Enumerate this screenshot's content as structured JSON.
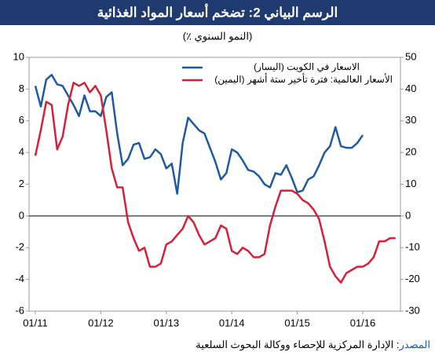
{
  "chart_data": {
    "type": "line",
    "title": "الرسم البياني 2: تضخم أسعار المواد الغذائية",
    "subtitle": "(٪ النمو السنوي)",
    "source_label": "المصدر",
    "source_text": ": الإدارة المركزية للإحصاء ووكالة البحوث السلعية",
    "categories": [
      "01/11",
      null,
      null,
      null,
      null,
      null,
      null,
      null,
      null,
      null,
      null,
      null,
      "01/12",
      null,
      null,
      null,
      null,
      null,
      null,
      null,
      null,
      null,
      null,
      null,
      "01/13",
      null,
      null,
      null,
      null,
      null,
      null,
      null,
      null,
      null,
      null,
      null,
      "01/14",
      null,
      null,
      null,
      null,
      null,
      null,
      null,
      null,
      null,
      null,
      null,
      "01/15",
      null,
      null,
      null,
      null,
      null,
      null,
      null,
      null,
      null,
      null,
      null,
      "01/16",
      null,
      null,
      null,
      null,
      null,
      null
    ],
    "ylim": [
      -6,
      10
    ],
    "yticks": [
      -6,
      -4,
      -2,
      0,
      2,
      4,
      6,
      8,
      10
    ],
    "y2lim": [
      -30,
      50
    ],
    "y2ticks": [
      -30,
      -20,
      -10,
      0,
      10,
      20,
      30,
      40,
      50
    ],
    "series": [
      {
        "name": "الاسعار في الكويت (اليسار)",
        "color": "#1f5aa0",
        "axis": "y",
        "values": [
          8.2,
          6.9,
          8.6,
          8.9,
          8.3,
          8.2,
          7.6,
          7.0,
          6.3,
          7.6,
          6.6,
          6.6,
          6.3,
          7.5,
          7.8,
          5.2,
          3.2,
          3.6,
          4.5,
          4.6,
          3.6,
          3.7,
          4.2,
          3.9,
          3.0,
          3.3,
          1.4,
          4.6,
          6.2,
          5.8,
          5.4,
          5.2,
          4.3,
          3.4,
          2.3,
          2.7,
          4.2,
          4.0,
          3.5,
          2.9,
          2.8,
          2.5,
          2.0,
          1.8,
          2.7,
          2.6,
          3.2,
          2.4,
          1.5,
          1.6,
          2.3,
          2.5,
          3.2,
          4.0,
          4.4,
          5.6,
          4.4,
          4.3,
          4.3,
          4.6,
          5.1,
          null,
          null,
          null,
          null,
          null,
          null
        ]
      },
      {
        "name": "الأسعار العالمية: فترة تأخير ستة أشهر (اليمين)",
        "color": "#d6203a",
        "axis": "y2",
        "values": [
          19,
          27,
          36,
          35,
          21,
          25,
          35,
          42,
          41,
          42,
          39,
          41,
          38,
          27,
          15,
          9,
          9,
          -2,
          -7,
          -11,
          -10,
          -16,
          -16,
          -15,
          -9,
          -8,
          -6,
          -4,
          0,
          -2,
          -6,
          -9,
          -8,
          -7,
          -3,
          -4,
          -11,
          -12,
          -10,
          -11,
          -13,
          -13,
          -12,
          -3,
          3,
          8,
          8,
          8,
          7,
          5,
          4,
          2,
          -1,
          -8,
          -16,
          -19,
          -21,
          -18,
          -17,
          -16,
          -16,
          -15,
          -13,
          -8,
          -8,
          -7,
          -7
        ]
      }
    ]
  }
}
